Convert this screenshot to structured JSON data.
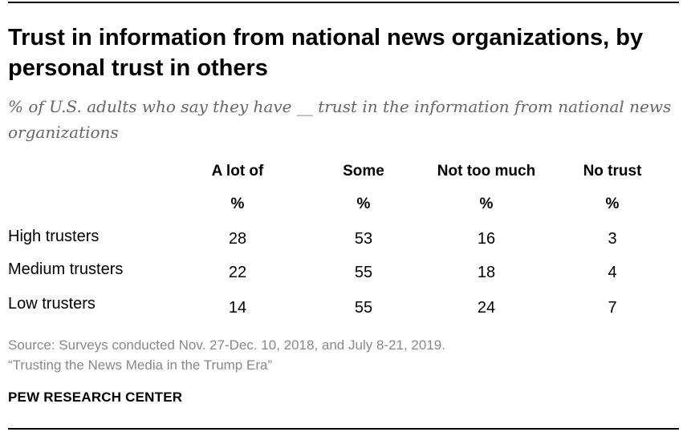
{
  "chart_data": {
    "type": "table",
    "title": "Trust in information from national news organizations, by personal trust in others",
    "subtitle": "% of U.S. adults who say they have __ trust in the information from national news organizations",
    "columns": [
      "A lot of",
      "Some",
      "Not too much",
      "No trust"
    ],
    "unit_label": "%",
    "rows": [
      {
        "label": "High trusters",
        "values": [
          28,
          53,
          16,
          3
        ]
      },
      {
        "label": "Medium trusters",
        "values": [
          22,
          55,
          18,
          4
        ]
      },
      {
        "label": "Low trusters",
        "values": [
          14,
          55,
          24,
          7
        ]
      }
    ]
  },
  "footer": {
    "source": "Source: Surveys conducted Nov. 27-Dec. 10, 2018, and July 8-21, 2019.",
    "report": "“Trusting the News Media in the Trump Era”",
    "brand": "PEW RESEARCH CENTER"
  }
}
